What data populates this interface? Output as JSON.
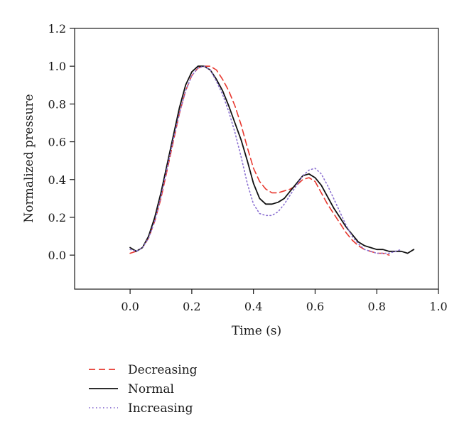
{
  "chart_data": {
    "type": "line",
    "title": "",
    "xlabel": "Time (s)",
    "ylabel": "Normalized pressure",
    "xlim": [
      -0.18,
      1.0
    ],
    "ylim": [
      -0.18,
      1.2
    ],
    "grid": false,
    "legend_position": "bottom-left",
    "x_ticks": [
      0.0,
      0.2,
      0.4,
      0.6,
      0.8,
      1.0
    ],
    "x_tick_labels": [
      "0.0",
      "0.2",
      "0.4",
      "0.6",
      "0.8",
      "1.0"
    ],
    "y_ticks": [
      0.0,
      0.2,
      0.4,
      0.6,
      0.8,
      1.0,
      1.2
    ],
    "y_tick_labels": [
      "0.0",
      "0.2",
      "0.4",
      "0.6",
      "0.8",
      "1.0",
      "1.2"
    ],
    "series": [
      {
        "name": "Decreasing",
        "color": "#e8382f",
        "style": "dashed",
        "x": [
          0.0,
          0.02,
          0.04,
          0.06,
          0.08,
          0.1,
          0.12,
          0.14,
          0.16,
          0.18,
          0.2,
          0.22,
          0.24,
          0.26,
          0.28,
          0.3,
          0.32,
          0.34,
          0.36,
          0.38,
          0.4,
          0.42,
          0.44,
          0.46,
          0.48,
          0.5,
          0.52,
          0.54,
          0.56,
          0.58,
          0.6,
          0.62,
          0.64,
          0.66,
          0.68,
          0.7,
          0.72,
          0.74,
          0.76,
          0.78,
          0.8,
          0.82,
          0.84
        ],
        "y": [
          0.01,
          0.02,
          0.04,
          0.09,
          0.18,
          0.3,
          0.45,
          0.6,
          0.75,
          0.87,
          0.95,
          0.99,
          1.0,
          1.0,
          0.98,
          0.93,
          0.87,
          0.79,
          0.69,
          0.57,
          0.46,
          0.39,
          0.35,
          0.33,
          0.33,
          0.34,
          0.35,
          0.37,
          0.4,
          0.41,
          0.39,
          0.33,
          0.27,
          0.22,
          0.17,
          0.12,
          0.08,
          0.05,
          0.03,
          0.02,
          0.01,
          0.01,
          0.0
        ]
      },
      {
        "name": "Normal",
        "color": "#111111",
        "style": "solid",
        "x": [
          0.0,
          0.02,
          0.04,
          0.06,
          0.08,
          0.1,
          0.12,
          0.14,
          0.16,
          0.18,
          0.2,
          0.22,
          0.24,
          0.26,
          0.28,
          0.3,
          0.32,
          0.34,
          0.36,
          0.38,
          0.4,
          0.42,
          0.44,
          0.46,
          0.48,
          0.5,
          0.52,
          0.54,
          0.56,
          0.58,
          0.6,
          0.62,
          0.64,
          0.66,
          0.68,
          0.7,
          0.72,
          0.74,
          0.76,
          0.78,
          0.8,
          0.82,
          0.84,
          0.86,
          0.88,
          0.9,
          0.92
        ],
        "y": [
          0.04,
          0.02,
          0.04,
          0.1,
          0.2,
          0.33,
          0.48,
          0.63,
          0.78,
          0.9,
          0.97,
          1.0,
          1.0,
          0.98,
          0.93,
          0.87,
          0.79,
          0.7,
          0.61,
          0.5,
          0.38,
          0.3,
          0.27,
          0.27,
          0.28,
          0.3,
          0.34,
          0.38,
          0.42,
          0.43,
          0.41,
          0.37,
          0.31,
          0.25,
          0.2,
          0.15,
          0.11,
          0.07,
          0.05,
          0.04,
          0.03,
          0.03,
          0.02,
          0.02,
          0.02,
          0.01,
          0.03
        ]
      },
      {
        "name": "Increasing",
        "color": "#8a6fd1",
        "style": "dotted",
        "x": [
          0.0,
          0.02,
          0.04,
          0.06,
          0.08,
          0.1,
          0.12,
          0.14,
          0.16,
          0.18,
          0.2,
          0.22,
          0.24,
          0.26,
          0.28,
          0.3,
          0.32,
          0.34,
          0.36,
          0.38,
          0.4,
          0.42,
          0.44,
          0.46,
          0.48,
          0.5,
          0.52,
          0.54,
          0.56,
          0.58,
          0.6,
          0.62,
          0.64,
          0.66,
          0.68,
          0.7,
          0.72,
          0.74,
          0.76,
          0.78,
          0.8,
          0.82,
          0.84,
          0.86,
          0.88
        ],
        "y": [
          0.03,
          0.02,
          0.04,
          0.09,
          0.18,
          0.31,
          0.46,
          0.61,
          0.75,
          0.87,
          0.95,
          0.99,
          1.0,
          0.98,
          0.92,
          0.85,
          0.76,
          0.65,
          0.52,
          0.38,
          0.27,
          0.22,
          0.21,
          0.21,
          0.23,
          0.27,
          0.32,
          0.37,
          0.42,
          0.45,
          0.46,
          0.43,
          0.37,
          0.3,
          0.23,
          0.16,
          0.1,
          0.06,
          0.03,
          0.02,
          0.01,
          0.01,
          0.01,
          0.02,
          0.03
        ]
      }
    ]
  }
}
